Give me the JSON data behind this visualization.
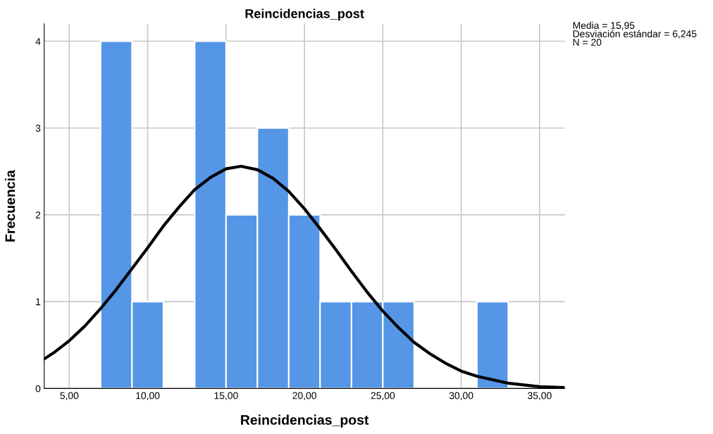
{
  "chart_data": {
    "type": "histogram",
    "title": "Reincidencias_post",
    "xlabel": "Reincidencias_post",
    "ylabel": "Frecuencia",
    "series": [
      {
        "color": "#5596e6",
        "bins": [
          7,
          9,
          11,
          13,
          15,
          17,
          19,
          21,
          23,
          25,
          27,
          29,
          31,
          33
        ],
        "values": [
          4,
          1,
          0,
          4,
          2,
          3,
          2,
          1,
          1,
          1,
          0,
          0,
          1
        ]
      },
      {
        "type": "line",
        "color": "#000000",
        "x": [
          3.4,
          4,
          5,
          6,
          7,
          8,
          9,
          10,
          11,
          12,
          13,
          14,
          15,
          15.95,
          17,
          18,
          19,
          20,
          21,
          22,
          23,
          24,
          25,
          26,
          27,
          28,
          29,
          30,
          31,
          33,
          35,
          36.6
        ],
        "values": [
          0.34,
          0.41,
          0.55,
          0.72,
          0.92,
          1.14,
          1.38,
          1.62,
          1.87,
          2.09,
          2.29,
          2.43,
          2.53,
          2.56,
          2.52,
          2.42,
          2.27,
          2.07,
          1.84,
          1.6,
          1.35,
          1.11,
          0.89,
          0.7,
          0.53,
          0.4,
          0.29,
          0.2,
          0.14,
          0.06,
          0.02,
          0.01
        ]
      }
    ],
    "xlim": [
      3.4,
      36.6
    ],
    "xticks": [
      {
        "value": 5,
        "label": "5,00"
      },
      {
        "value": 10,
        "label": "10,00"
      },
      {
        "value": 15,
        "label": "15,00"
      },
      {
        "value": 20,
        "label": "20,00"
      },
      {
        "value": 25,
        "label": "25,00"
      },
      {
        "value": 30,
        "label": "30,00"
      },
      {
        "value": 35,
        "label": "35,00"
      }
    ],
    "ylim": [
      0,
      4.2
    ],
    "yticks": [
      0,
      1,
      2,
      3,
      4
    ],
    "grid": true,
    "annotations": [
      "Media = 15,95\nDesviación estándar = 6,245\nN = 20"
    ]
  }
}
